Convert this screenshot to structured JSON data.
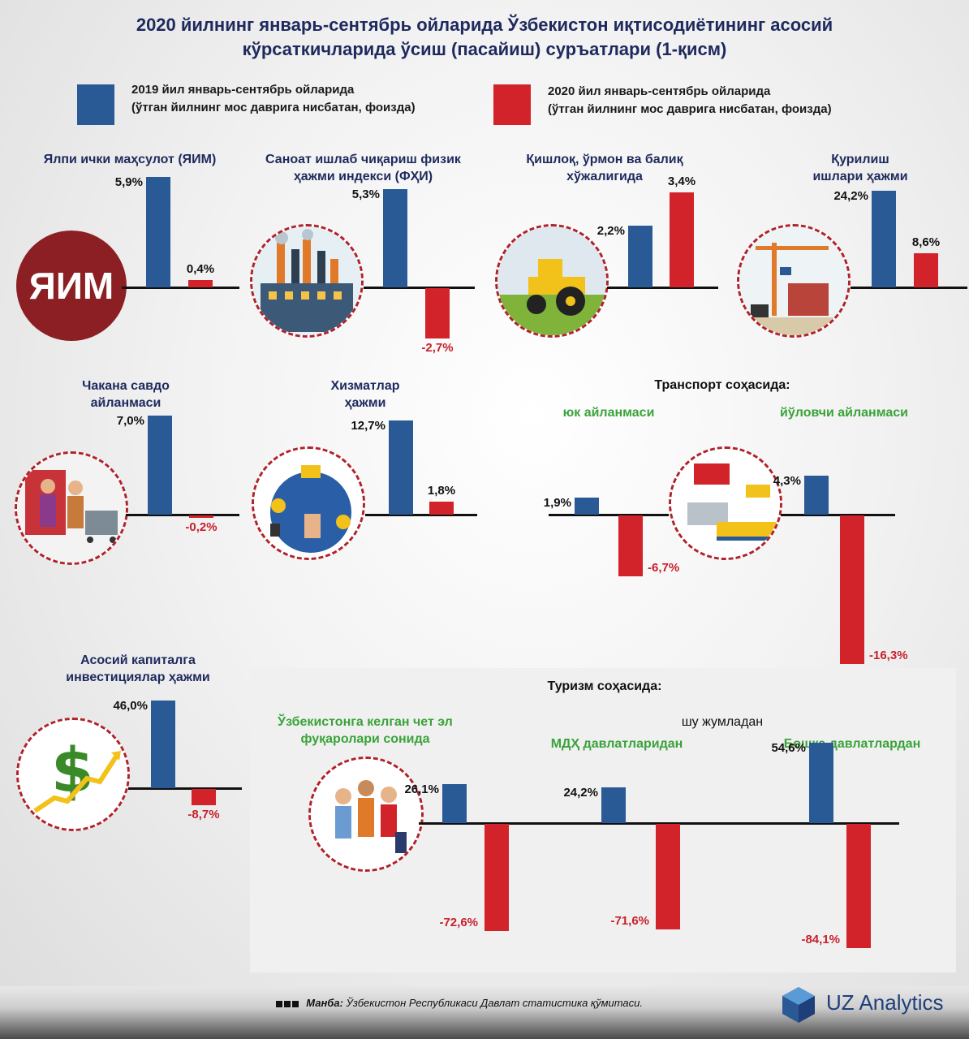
{
  "title": {
    "line1": "2020 йилнинг январь-сентябрь ойларида Ўзбекистон иқтисодиётининг асосий",
    "line2": "кўрсаткичларида  ўсиш (пасайиш) суръатлари (1-қисм)"
  },
  "legend": {
    "item1_line1": "2019 йил январь-сентябрь ойларида",
    "item1_line2": "(ўтган йилнинг мос даврига нисбатан, фоизда)",
    "item2_line1": "2020 йил январь-сентябрь ойларида",
    "item2_line2": "(ўтган йилнинг мос даврига нисбатан, фоизда)",
    "color1": "#2a5a96",
    "color2": "#d2232a"
  },
  "gdp_badge": "ЯИМ",
  "sections": {
    "transport": "Транспорт соҳасида:",
    "tourism": "Туризм соҳасида:",
    "including": "шу жумладан"
  },
  "chart_data": [
    {
      "type": "bar",
      "title_line1": "Ялпи ички маҳсулот (ЯИМ)",
      "title_line2": "",
      "values": [
        5.9,
        0.4
      ],
      "labels": [
        "5,9%",
        "0,4%"
      ]
    },
    {
      "type": "bar",
      "title_line1": "Саноат ишлаб чиқариш физик",
      "title_line2": "ҳажми индекси (ФҲИ)",
      "values": [
        5.3,
        -2.7
      ],
      "labels": [
        "5,3%",
        "-2,7%"
      ]
    },
    {
      "type": "bar",
      "title_line1": "Қишлоқ, ўрмон ва балиқ",
      "title_line2": "хўжалигида",
      "values": [
        2.2,
        3.4
      ],
      "labels": [
        "2,2%",
        "3,4%"
      ]
    },
    {
      "type": "bar",
      "title_line1": "Қурилиш",
      "title_line2": "ишлари ҳажми",
      "values": [
        24.2,
        8.6
      ],
      "labels": [
        "24,2%",
        "8,6%"
      ]
    },
    {
      "type": "bar",
      "title_line1": "Чакана савдо",
      "title_line2": "айланмаси",
      "values": [
        7.0,
        -0.2
      ],
      "labels": [
        "7,0%",
        "-0,2%"
      ]
    },
    {
      "type": "bar",
      "title_line1": "Хизматлар",
      "title_line2": "ҳажми",
      "values": [
        12.7,
        1.8
      ],
      "labels": [
        "12,7%",
        "1,8%"
      ]
    },
    {
      "type": "bar",
      "title_line1": "юк айланмаси",
      "title_line2": "",
      "values": [
        1.9,
        -6.7
      ],
      "labels": [
        "1,9%",
        "-6,7%"
      ]
    },
    {
      "type": "bar",
      "title_line1": "йўловчи айланмаси",
      "title_line2": "",
      "values": [
        4.3,
        -16.3
      ],
      "labels": [
        "4,3%",
        "-16,3%"
      ]
    },
    {
      "type": "bar",
      "title_line1": "Асосий капиталга",
      "title_line2": "инвестициялар ҳажми",
      "values": [
        46.0,
        -8.7
      ],
      "labels": [
        "46,0%",
        "-8,7%"
      ]
    },
    {
      "type": "bar",
      "title_line1": "Ўзбекистонга келган чет эл",
      "title_line2": "фуқаролари сонида",
      "values": [
        26.1,
        -72.6
      ],
      "labels": [
        "26,1%",
        "-72,6%"
      ]
    },
    {
      "type": "bar",
      "title_line1": "МДҲ давлатларидан",
      "title_line2": "",
      "values": [
        24.2,
        -71.6
      ],
      "labels": [
        "24,2%",
        "-71,6%"
      ]
    },
    {
      "type": "bar",
      "title_line1": "Бошқа давлатлардан",
      "title_line2": "",
      "values": [
        54.6,
        -84.1
      ],
      "labels": [
        "54,6%",
        "-84,1%"
      ]
    }
  ],
  "footer": {
    "source_label": "Манба:",
    "source_text": " Ўзбекистон Республикаси Давлат статистика қўмитаси.",
    "brand": "UZ Analytics"
  }
}
